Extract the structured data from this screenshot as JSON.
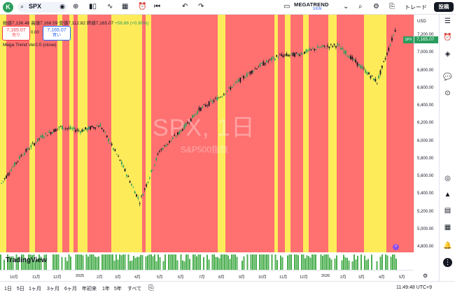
{
  "toolbar": {
    "logo": "K",
    "symbol": "SPX",
    "mega_title": "MEGATREND",
    "mega_sub": "SIGN",
    "trade_label": "トレード",
    "post_label": "投稿"
  },
  "legend": {
    "ohlc": "始値7,136.48 高値7,168.59 安値7,112.82 終値7,165.07",
    "change": "+56.66 (+0.80%)",
    "sell_price": "7,165.07",
    "sell_label": "売り",
    "spread": "0.00",
    "buy_price": "7,165.07",
    "buy_label": "買い",
    "indicator": "Mega Trend Ver2.0 (close)"
  },
  "watermark": {
    "main": "SPX, 1日",
    "sub": "S&P500指数"
  },
  "price_axis": {
    "currency": "USD",
    "last_price": "7,165.07",
    "last_symbol": "SPX",
    "ticks": [
      "7,200.00",
      "7,000.00",
      "6,800.00",
      "6,600.00",
      "6,400.00",
      "6,200.00",
      "6,000.00",
      "5,800.00",
      "5,600.00",
      "5,400.00",
      "5,200.00",
      "5,000.00",
      "4,800.00"
    ]
  },
  "date_axis": {
    "ticks": [
      "10月",
      "11月",
      "12月",
      "2025",
      "2月",
      "3月",
      "4月",
      "5月",
      "6月",
      "7月",
      "8月",
      "9月",
      "10月",
      "11月",
      "12月",
      "2026",
      "2月",
      "3月",
      "4月",
      "5月"
    ]
  },
  "ranges": [
    "1日",
    "5日",
    "1ヶ月",
    "3ヶ月",
    "6ヶ月",
    "年初来",
    "1年",
    "5年",
    "すべて"
  ],
  "clock": "11:49:48 UTC+9",
  "tv_logo": "TradingView",
  "colors": {
    "red_band": "#ff7070",
    "yellow_band": "#fdeb5a",
    "up": "#2a9d5c",
    "down": "#131722"
  },
  "chart_data": {
    "type": "candlestick",
    "title": "SPX, 1日",
    "x": [
      "2024-09",
      "2024-10",
      "2024-11",
      "2024-12",
      "2025-01",
      "2025-02",
      "2025-03",
      "2025-04",
      "2025-05",
      "2025-06",
      "2025-07",
      "2025-08",
      "2025-09",
      "2025-10",
      "2025-11",
      "2025-12",
      "2026-01",
      "2026-02",
      "2026-03",
      "2026-04",
      "2026-05"
    ],
    "series": [
      {
        "name": "SPX",
        "values": [
          5450,
          5750,
          5950,
          6060,
          6020,
          6080,
          5700,
          5250,
          5800,
          6000,
          6250,
          6380,
          6560,
          6720,
          6830,
          6850,
          6920,
          6950,
          6750,
          6550,
          7165
        ]
      }
    ],
    "ylim": [
      4700,
      7280
    ],
    "ylabel": "USD"
  }
}
